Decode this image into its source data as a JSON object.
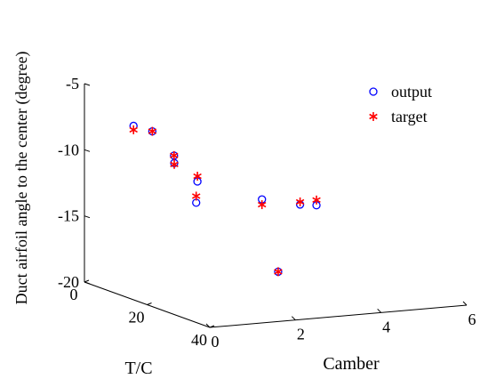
{
  "chart_data": {
    "type": "scatter",
    "projection": "3d",
    "xlabel": "Camber",
    "ylabel": "T/C",
    "zlabel": "Duct airfoil angle to the center  (degree)",
    "xlim": [
      0,
      6
    ],
    "ylim": [
      0,
      40
    ],
    "zlim": [
      -20,
      -5
    ],
    "xticks": [
      "0",
      "2",
      "4",
      "6"
    ],
    "yticks": [
      "0",
      "20",
      "40"
    ],
    "zticks": [
      "-5",
      "-10",
      "-15",
      "-20"
    ],
    "grid": false,
    "legend_position": "top-right",
    "series": [
      {
        "name": "output",
        "marker": "circle",
        "color": "#0000ff",
        "points": [
          {
            "x": 1.0,
            "y": 2.0,
            "z": -8.3
          },
          {
            "x": 1.0,
            "y": 8.0,
            "z": -8.2
          },
          {
            "x": 1.8,
            "y": 4.0,
            "z": -10.6
          },
          {
            "x": 1.0,
            "y": 15.0,
            "z": -10.0
          },
          {
            "x": 2.2,
            "y": 6.0,
            "z": -12.5
          },
          {
            "x": 1.0,
            "y": 22.0,
            "z": -12.4
          },
          {
            "x": 4.0,
            "y": 2.0,
            "z": -14.7
          },
          {
            "x": 5.0,
            "y": 0.5,
            "z": -15.5
          },
          {
            "x": 5.2,
            "y": 3.0,
            "z": -15.4
          },
          {
            "x": 3.5,
            "y": 14.0,
            "z": -19.0
          }
        ]
      },
      {
        "name": "target",
        "marker": "asterisk",
        "color": "#ff0000",
        "points": [
          {
            "x": 1.0,
            "y": 2.0,
            "z": -8.6
          },
          {
            "x": 1.0,
            "y": 8.0,
            "z": -8.2
          },
          {
            "x": 1.8,
            "y": 4.0,
            "z": -10.6
          },
          {
            "x": 1.0,
            "y": 15.0,
            "z": -10.1
          },
          {
            "x": 2.2,
            "y": 6.0,
            "z": -12.1
          },
          {
            "x": 1.0,
            "y": 22.0,
            "z": -11.9
          },
          {
            "x": 4.0,
            "y": 2.0,
            "z": -15.1
          },
          {
            "x": 5.0,
            "y": 0.5,
            "z": -15.3
          },
          {
            "x": 5.2,
            "y": 3.0,
            "z": -15.0
          },
          {
            "x": 3.5,
            "y": 14.0,
            "z": -19.0
          }
        ]
      }
    ]
  }
}
